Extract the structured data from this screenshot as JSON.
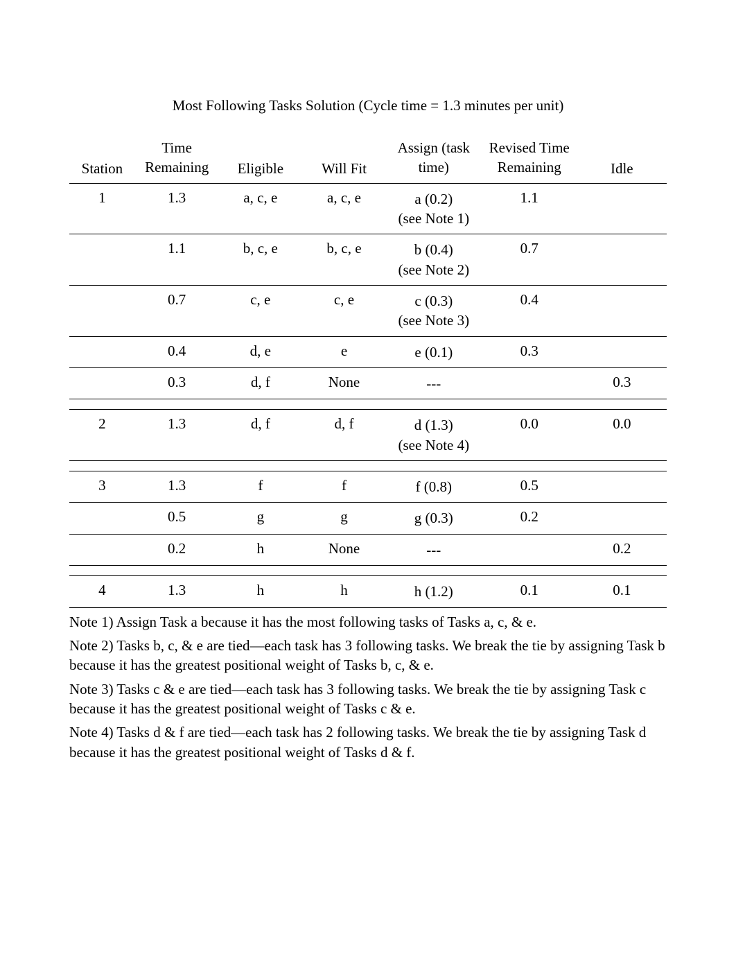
{
  "title": "Most Following Tasks Solution (Cycle time = 1.3 minutes per unit)",
  "headers": {
    "station": "Station",
    "time_remaining": "Time Remaining",
    "eligible": "Eligible",
    "will_fit": "Will Fit",
    "assign": "Assign (task time)",
    "revised": "Revised Time Remaining",
    "idle": "Idle"
  },
  "rows": [
    {
      "station": "1",
      "time_remaining": "1.3",
      "eligible": "a, c, e",
      "will_fit": "a, c, e",
      "assign_line1": "a (0.2)",
      "assign_line2": "(see Note 1)",
      "revised": "1.1",
      "idle": ""
    },
    {
      "station": "",
      "time_remaining": "1.1",
      "eligible": "b, c, e",
      "will_fit": "b, c, e",
      "assign_line1": "b (0.4)",
      "assign_line2": "(see Note 2)",
      "revised": "0.7",
      "idle": ""
    },
    {
      "station": "",
      "time_remaining": "0.7",
      "eligible": "c, e",
      "will_fit": "c, e",
      "assign_line1": "c (0.3)",
      "assign_line2": "(see Note 3)",
      "revised": "0.4",
      "idle": ""
    },
    {
      "station": "",
      "time_remaining": "0.4",
      "eligible": "d, e",
      "will_fit": "e",
      "assign_line1": "e (0.1)",
      "assign_line2": "",
      "revised": "0.3",
      "idle": ""
    },
    {
      "station": "",
      "time_remaining": "0.3",
      "eligible": "d, f",
      "will_fit": "None",
      "assign_line1": "---",
      "assign_line2": "",
      "revised": "",
      "idle": "0.3"
    },
    {
      "spacer": true
    },
    {
      "station": "2",
      "time_remaining": "1.3",
      "eligible": "d, f",
      "will_fit": "d, f",
      "assign_line1": "d (1.3)",
      "assign_line2": "(see Note 4)",
      "revised": "0.0",
      "idle": "0.0"
    },
    {
      "spacer": true
    },
    {
      "station": "3",
      "time_remaining": "1.3",
      "eligible": "f",
      "will_fit": "f",
      "assign_line1": "f (0.8)",
      "assign_line2": "",
      "revised": "0.5",
      "idle": ""
    },
    {
      "station": "",
      "time_remaining": "0.5",
      "eligible": "g",
      "will_fit": "g",
      "assign_line1": "g (0.3)",
      "assign_line2": "",
      "revised": "0.2",
      "idle": ""
    },
    {
      "station": "",
      "time_remaining": "0.2",
      "eligible": "h",
      "will_fit": "None",
      "assign_line1": "---",
      "assign_line2": "",
      "revised": "",
      "idle": "0.2"
    },
    {
      "spacer": true
    },
    {
      "station": "4",
      "time_remaining": "1.3",
      "eligible": "h",
      "will_fit": "h",
      "assign_line1": "h (1.2)",
      "assign_line2": "",
      "revised": "0.1",
      "idle": "0.1"
    }
  ],
  "notes": {
    "n1": "Note 1) Assign Task a because it has the most following tasks of Tasks a, c, & e.",
    "n2": "Note 2) Tasks b, c, & e are tied—each task has 3 following tasks. We break the tie by assigning Task b because it has the greatest positional weight of Tasks b, c, & e.",
    "n3": "Note 3) Tasks c & e are tied—each task has 3 following tasks. We break the tie by assigning Task c because it has the greatest positional weight of Tasks c & e.",
    "n4": "Note 4) Tasks d & f are tied—each task has 2 following tasks. We break the tie by assigning Task d because it has the greatest positional weight of Tasks d & f."
  }
}
